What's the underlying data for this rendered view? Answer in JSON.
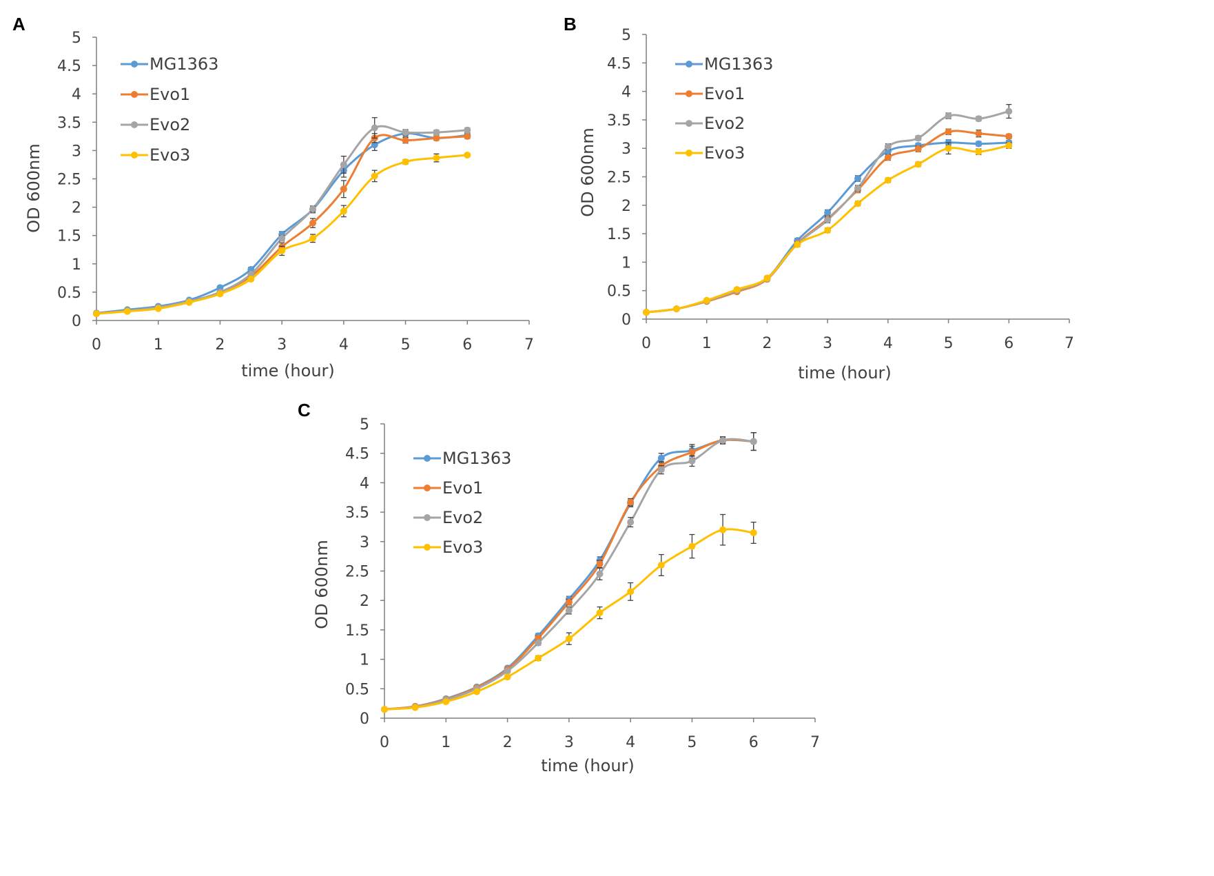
{
  "chart_data": [
    {
      "panel": "A",
      "type": "line",
      "xlabel": "time (hour)",
      "ylabel": "OD 600nm",
      "xlim": [
        0,
        7
      ],
      "ylim": [
        0,
        5
      ],
      "xticks": [
        0,
        1,
        2,
        3,
        4,
        5,
        6,
        7
      ],
      "yticks": [
        0,
        0.5,
        1,
        1.5,
        2,
        2.5,
        3,
        3.5,
        4,
        4.5,
        5
      ],
      "ytick_labels": [
        "0",
        "0.5",
        "1",
        "1.5",
        "2",
        "2.5",
        "3",
        "3.5",
        "4",
        "4.5",
        "5"
      ],
      "x": [
        0,
        0.5,
        1,
        1.5,
        2,
        2.5,
        3,
        3.5,
        4,
        4.5,
        5,
        5.5,
        6
      ],
      "legend": "top-left",
      "series": [
        {
          "name": "MG1363",
          "color": "#5b9bd5",
          "values": [
            0.13,
            0.19,
            0.25,
            0.36,
            0.58,
            0.9,
            1.52,
            1.96,
            2.65,
            3.1,
            3.3,
            3.22,
            3.27
          ],
          "errors": [
            0.02,
            0.02,
            0.02,
            0.02,
            0.03,
            0.04,
            0.05,
            0.06,
            0.12,
            0.1,
            0.06,
            0.04,
            0.04
          ]
        },
        {
          "name": "Evo1",
          "color": "#ed7d31",
          "values": [
            0.12,
            0.17,
            0.22,
            0.33,
            0.5,
            0.78,
            1.3,
            1.72,
            2.32,
            3.22,
            3.18,
            3.22,
            3.25
          ],
          "errors": [
            0.02,
            0.02,
            0.02,
            0.02,
            0.03,
            0.04,
            0.07,
            0.08,
            0.15,
            0.08,
            0.05,
            0.04,
            0.04
          ]
        },
        {
          "name": "Evo2",
          "color": "#a5a5a5",
          "values": [
            0.12,
            0.17,
            0.23,
            0.34,
            0.5,
            0.82,
            1.45,
            1.97,
            2.75,
            3.4,
            3.32,
            3.32,
            3.36
          ],
          "errors": [
            0.02,
            0.02,
            0.02,
            0.02,
            0.03,
            0.04,
            0.05,
            0.05,
            0.15,
            0.18,
            0.05,
            0.04,
            0.04
          ]
        },
        {
          "name": "Evo3",
          "color": "#ffc000",
          "values": [
            0.12,
            0.16,
            0.21,
            0.32,
            0.47,
            0.73,
            1.23,
            1.45,
            1.93,
            2.55,
            2.8,
            2.87,
            2.92
          ],
          "errors": [
            0.02,
            0.02,
            0.02,
            0.02,
            0.03,
            0.03,
            0.08,
            0.07,
            0.1,
            0.1,
            0.04,
            0.07,
            0.03
          ]
        }
      ]
    },
    {
      "panel": "B",
      "type": "line",
      "xlabel": "time (hour)",
      "ylabel": "OD 600nm",
      "xlim": [
        0,
        7
      ],
      "ylim": [
        0,
        5
      ],
      "xticks": [
        0,
        1,
        2,
        3,
        4,
        5,
        6,
        7
      ],
      "yticks": [
        0,
        0.5,
        1,
        1.5,
        2,
        2.5,
        3,
        3.5,
        4,
        4.5,
        5
      ],
      "ytick_labels": [
        "0",
        "0.5",
        "1",
        "1.5",
        "2",
        "2.5",
        "3",
        "3.5",
        "4",
        "4.5",
        "5"
      ],
      "x": [
        0,
        0.5,
        1,
        1.5,
        2,
        2.5,
        3,
        3.5,
        4,
        4.5,
        5,
        5.5,
        6
      ],
      "legend": "top-left",
      "series": [
        {
          "name": "MG1363",
          "color": "#5b9bd5",
          "values": [
            0.12,
            0.18,
            0.32,
            0.5,
            0.72,
            1.38,
            1.87,
            2.47,
            2.95,
            3.05,
            3.1,
            3.08,
            3.1
          ],
          "errors": [
            0.02,
            0.02,
            0.02,
            0.03,
            0.03,
            0.04,
            0.05,
            0.05,
            0.05,
            0.04,
            0.05,
            0.04,
            0.04
          ]
        },
        {
          "name": "Evo1",
          "color": "#ed7d31",
          "values": [
            0.12,
            0.18,
            0.31,
            0.48,
            0.7,
            1.33,
            1.76,
            2.27,
            2.84,
            2.99,
            3.29,
            3.26,
            3.21
          ],
          "errors": [
            0.02,
            0.02,
            0.02,
            0.03,
            0.03,
            0.04,
            0.05,
            0.05,
            0.05,
            0.05,
            0.05,
            0.06,
            0.04
          ]
        },
        {
          "name": "Evo2",
          "color": "#a5a5a5",
          "values": [
            0.12,
            0.18,
            0.32,
            0.5,
            0.71,
            1.32,
            1.74,
            2.3,
            3.03,
            3.18,
            3.57,
            3.52,
            3.65
          ],
          "errors": [
            0.02,
            0.02,
            0.02,
            0.03,
            0.03,
            0.04,
            0.05,
            0.05,
            0.05,
            0.04,
            0.05,
            0.04,
            0.12
          ]
        },
        {
          "name": "Evo3",
          "color": "#ffc000",
          "values": [
            0.12,
            0.18,
            0.33,
            0.52,
            0.72,
            1.31,
            1.56,
            2.03,
            2.44,
            2.72,
            3.0,
            2.94,
            3.05
          ],
          "errors": [
            0.02,
            0.02,
            0.02,
            0.03,
            0.03,
            0.04,
            0.04,
            0.04,
            0.04,
            0.04,
            0.1,
            0.05,
            0.05
          ]
        }
      ]
    },
    {
      "panel": "C",
      "type": "line",
      "xlabel": "time (hour)",
      "ylabel": "OD 600nm",
      "xlim": [
        0,
        7
      ],
      "ylim": [
        0,
        5
      ],
      "xticks": [
        0,
        1,
        2,
        3,
        4,
        5,
        6,
        7
      ],
      "yticks": [
        0,
        0.5,
        1,
        1.5,
        2,
        2.5,
        3,
        3.5,
        4,
        4.5,
        5
      ],
      "ytick_labels": [
        "0",
        "0.5",
        "1",
        "1.5",
        "2",
        "2.5",
        "3",
        "3.5",
        "4",
        "4.5",
        "5"
      ],
      "x": [
        0,
        0.5,
        1,
        1.5,
        2,
        2.5,
        3,
        3.5,
        4,
        4.5,
        5,
        5.5,
        6
      ],
      "legend": "top-left",
      "series": [
        {
          "name": "MG1363",
          "color": "#5b9bd5",
          "values": [
            0.15,
            0.2,
            0.33,
            0.53,
            0.85,
            1.4,
            2.02,
            2.68,
            3.65,
            4.42,
            4.55,
            4.72,
            4.7
          ],
          "errors": [
            0.02,
            0.02,
            0.02,
            0.03,
            0.03,
            0.04,
            0.05,
            0.06,
            0.06,
            0.08,
            0.1,
            0.06,
            0.15
          ]
        },
        {
          "name": "Evo1",
          "color": "#ed7d31",
          "values": [
            0.15,
            0.2,
            0.32,
            0.52,
            0.83,
            1.36,
            1.97,
            2.62,
            3.67,
            4.28,
            4.52,
            4.72,
            4.7
          ],
          "errors": [
            0.02,
            0.02,
            0.02,
            0.03,
            0.03,
            0.04,
            0.05,
            0.06,
            0.06,
            0.08,
            0.1,
            0.06,
            0.15
          ]
        },
        {
          "name": "Evo2",
          "color": "#a5a5a5",
          "values": [
            0.15,
            0.19,
            0.31,
            0.5,
            0.8,
            1.28,
            1.83,
            2.45,
            3.33,
            4.22,
            4.37,
            4.72,
            4.7
          ],
          "errors": [
            0.02,
            0.02,
            0.02,
            0.03,
            0.03,
            0.04,
            0.06,
            0.1,
            0.08,
            0.07,
            0.09,
            0.05,
            0.15
          ]
        },
        {
          "name": "Evo3",
          "color": "#ffc000",
          "values": [
            0.15,
            0.18,
            0.28,
            0.45,
            0.7,
            1.02,
            1.35,
            1.79,
            2.15,
            2.6,
            2.92,
            3.2,
            3.15
          ],
          "errors": [
            0.02,
            0.02,
            0.02,
            0.03,
            0.03,
            0.04,
            0.1,
            0.1,
            0.15,
            0.18,
            0.2,
            0.26,
            0.18
          ]
        }
      ]
    }
  ]
}
